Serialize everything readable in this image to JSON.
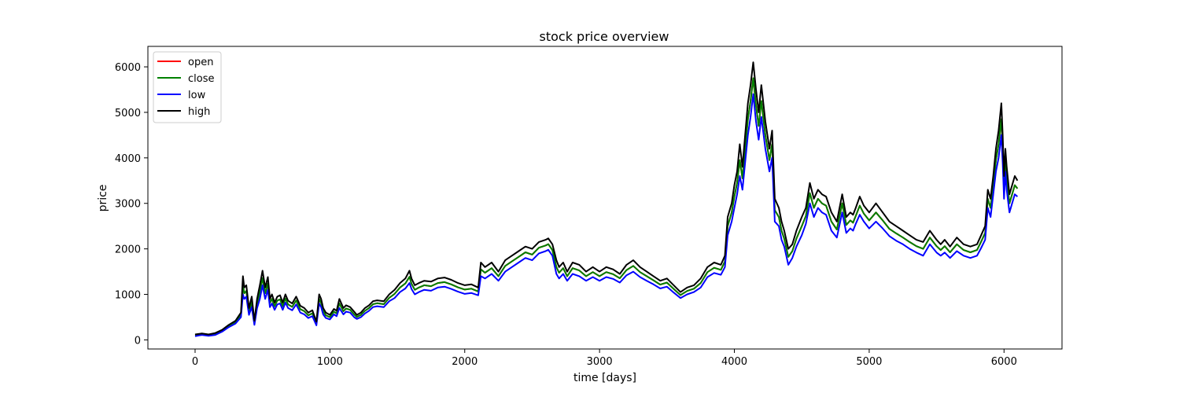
{
  "chart_data": {
    "type": "line",
    "title": "stock price overview",
    "xlabel": "time [days]",
    "ylabel": "price",
    "xlim": [
      -350,
      6430
    ],
    "ylim": [
      -200,
      6450
    ],
    "xticks": [
      0,
      1000,
      2000,
      3000,
      4000,
      5000,
      6000
    ],
    "yticks": [
      0,
      1000,
      2000,
      3000,
      4000,
      5000,
      6000
    ],
    "grid": false,
    "legend_position": "top-left",
    "series": [
      {
        "name": "open",
        "color": "#ff0000"
      },
      {
        "name": "close",
        "color": "#008000"
      },
      {
        "name": "low",
        "color": "#0000ff"
      },
      {
        "name": "high",
        "color": "#000000"
      }
    ],
    "x": [
      0,
      50,
      100,
      150,
      200,
      250,
      300,
      340,
      355,
      365,
      380,
      400,
      420,
      440,
      460,
      480,
      500,
      520,
      540,
      555,
      570,
      590,
      610,
      630,
      650,
      670,
      690,
      720,
      750,
      780,
      810,
      840,
      870,
      900,
      920,
      935,
      950,
      970,
      1000,
      1030,
      1050,
      1070,
      1100,
      1120,
      1150,
      1180,
      1200,
      1230,
      1260,
      1290,
      1320,
      1350,
      1400,
      1440,
      1480,
      1520,
      1560,
      1590,
      1605,
      1630,
      1660,
      1700,
      1750,
      1800,
      1850,
      1900,
      1950,
      2000,
      2050,
      2100,
      2120,
      2150,
      2200,
      2250,
      2300,
      2350,
      2400,
      2450,
      2500,
      2550,
      2600,
      2620,
      2650,
      2680,
      2700,
      2730,
      2760,
      2800,
      2850,
      2900,
      2950,
      3000,
      3050,
      3100,
      3150,
      3200,
      3250,
      3300,
      3350,
      3400,
      3450,
      3500,
      3550,
      3600,
      3650,
      3700,
      3750,
      3800,
      3850,
      3900,
      3930,
      3950,
      3980,
      4000,
      4020,
      4040,
      4060,
      4080,
      4100,
      4120,
      4140,
      4160,
      4180,
      4200,
      4230,
      4260,
      4280,
      4300,
      4330,
      4350,
      4370,
      4400,
      4430,
      4460,
      4500,
      4530,
      4560,
      4590,
      4620,
      4650,
      4680,
      4720,
      4760,
      4800,
      4830,
      4860,
      4880,
      4900,
      4930,
      4960,
      5000,
      5050,
      5100,
      5150,
      5200,
      5250,
      5300,
      5350,
      5400,
      5450,
      5500,
      5530,
      5560,
      5600,
      5650,
      5700,
      5750,
      5800,
      5830,
      5860,
      5880,
      5900,
      5920,
      5940,
      5960,
      5980,
      5990,
      6000,
      6010,
      6020,
      6040,
      6060,
      6080,
      6100
    ],
    "high": [
      120,
      140,
      120,
      150,
      220,
      330,
      420,
      600,
      1400,
      1150,
      1200,
      700,
      950,
      420,
      900,
      1200,
      1520,
      1150,
      1380,
      900,
      1000,
      820,
      950,
      980,
      820,
      1000,
      860,
      800,
      950,
      750,
      700,
      600,
      650,
      400,
      1000,
      900,
      700,
      600,
      550,
      680,
      640,
      900,
      700,
      760,
      720,
      620,
      550,
      600,
      700,
      760,
      850,
      870,
      850,
      1000,
      1100,
      1250,
      1350,
      1520,
      1350,
      1200,
      1250,
      1300,
      1280,
      1350,
      1370,
      1320,
      1250,
      1200,
      1220,
      1150,
      1700,
      1600,
      1700,
      1500,
      1750,
      1850,
      1950,
      2050,
      2000,
      2150,
      2200,
      2230,
      2100,
      1750,
      1600,
      1700,
      1500,
      1700,
      1650,
      1500,
      1600,
      1500,
      1600,
      1550,
      1450,
      1650,
      1750,
      1600,
      1500,
      1400,
      1300,
      1350,
      1200,
      1050,
      1150,
      1200,
      1350,
      1600,
      1700,
      1650,
      1850,
      2700,
      3000,
      3400,
      3700,
      4300,
      3800,
      4500,
      5200,
      5600,
      6100,
      5500,
      5000,
      5600,
      4800,
      4200,
      4600,
      3100,
      2900,
      2600,
      2400,
      2000,
      2100,
      2400,
      2700,
      2900,
      3450,
      3100,
      3300,
      3200,
      3150,
      2800,
      2600,
      3200,
      2700,
      2800,
      2750,
      2900,
      3150,
      2950,
      2800,
      3000,
      2800,
      2600,
      2500,
      2400,
      2300,
      2200,
      2150,
      2400,
      2200,
      2100,
      2200,
      2050,
      2250,
      2100,
      2050,
      2100,
      2300,
      2500,
      3300,
      3100,
      3600,
      4200,
      4600,
      5200,
      4500,
      3600,
      4200,
      3800,
      3200,
      3400,
      3600,
      3500
    ],
    "low": [
      80,
      110,
      90,
      110,
      180,
      280,
      360,
      500,
      1000,
      900,
      950,
      550,
      720,
      330,
      700,
      900,
      1200,
      900,
      1100,
      720,
      800,
      660,
      780,
      800,
      660,
      820,
      700,
      650,
      780,
      600,
      560,
      480,
      520,
      320,
      800,
      720,
      560,
      480,
      450,
      560,
      520,
      700,
      560,
      620,
      600,
      500,
      460,
      500,
      580,
      640,
      720,
      740,
      720,
      850,
      920,
      1050,
      1130,
      1250,
      1120,
      1000,
      1050,
      1100,
      1080,
      1150,
      1170,
      1120,
      1060,
      1010,
      1030,
      980,
      1400,
      1350,
      1450,
      1300,
      1500,
      1600,
      1700,
      1800,
      1750,
      1900,
      1950,
      1980,
      1850,
      1450,
      1350,
      1450,
      1300,
      1450,
      1400,
      1300,
      1380,
      1300,
      1380,
      1340,
      1260,
      1420,
      1500,
      1380,
      1300,
      1220,
      1130,
      1170,
      1040,
      920,
      1000,
      1050,
      1150,
      1380,
      1470,
      1430,
      1600,
      2300,
      2600,
      2900,
      3200,
      3600,
      3300,
      3900,
      4500,
      4900,
      5400,
      4800,
      4400,
      4900,
      4200,
      3700,
      4000,
      2600,
      2500,
      2200,
      2050,
      1650,
      1800,
      2050,
      2300,
      2550,
      3000,
      2700,
      2900,
      2800,
      2750,
      2400,
      2250,
      2800,
      2350,
      2450,
      2400,
      2550,
      2750,
      2600,
      2450,
      2600,
      2450,
      2280,
      2180,
      2100,
      2000,
      1920,
      1850,
      2100,
      1920,
      1850,
      1920,
      1800,
      1950,
      1850,
      1800,
      1850,
      2020,
      2200,
      2900,
      2700,
      3200,
      3700,
      4000,
      4500,
      3900,
      3100,
      3700,
      3300,
      2800,
      3000,
      3200,
      3150
    ]
  }
}
